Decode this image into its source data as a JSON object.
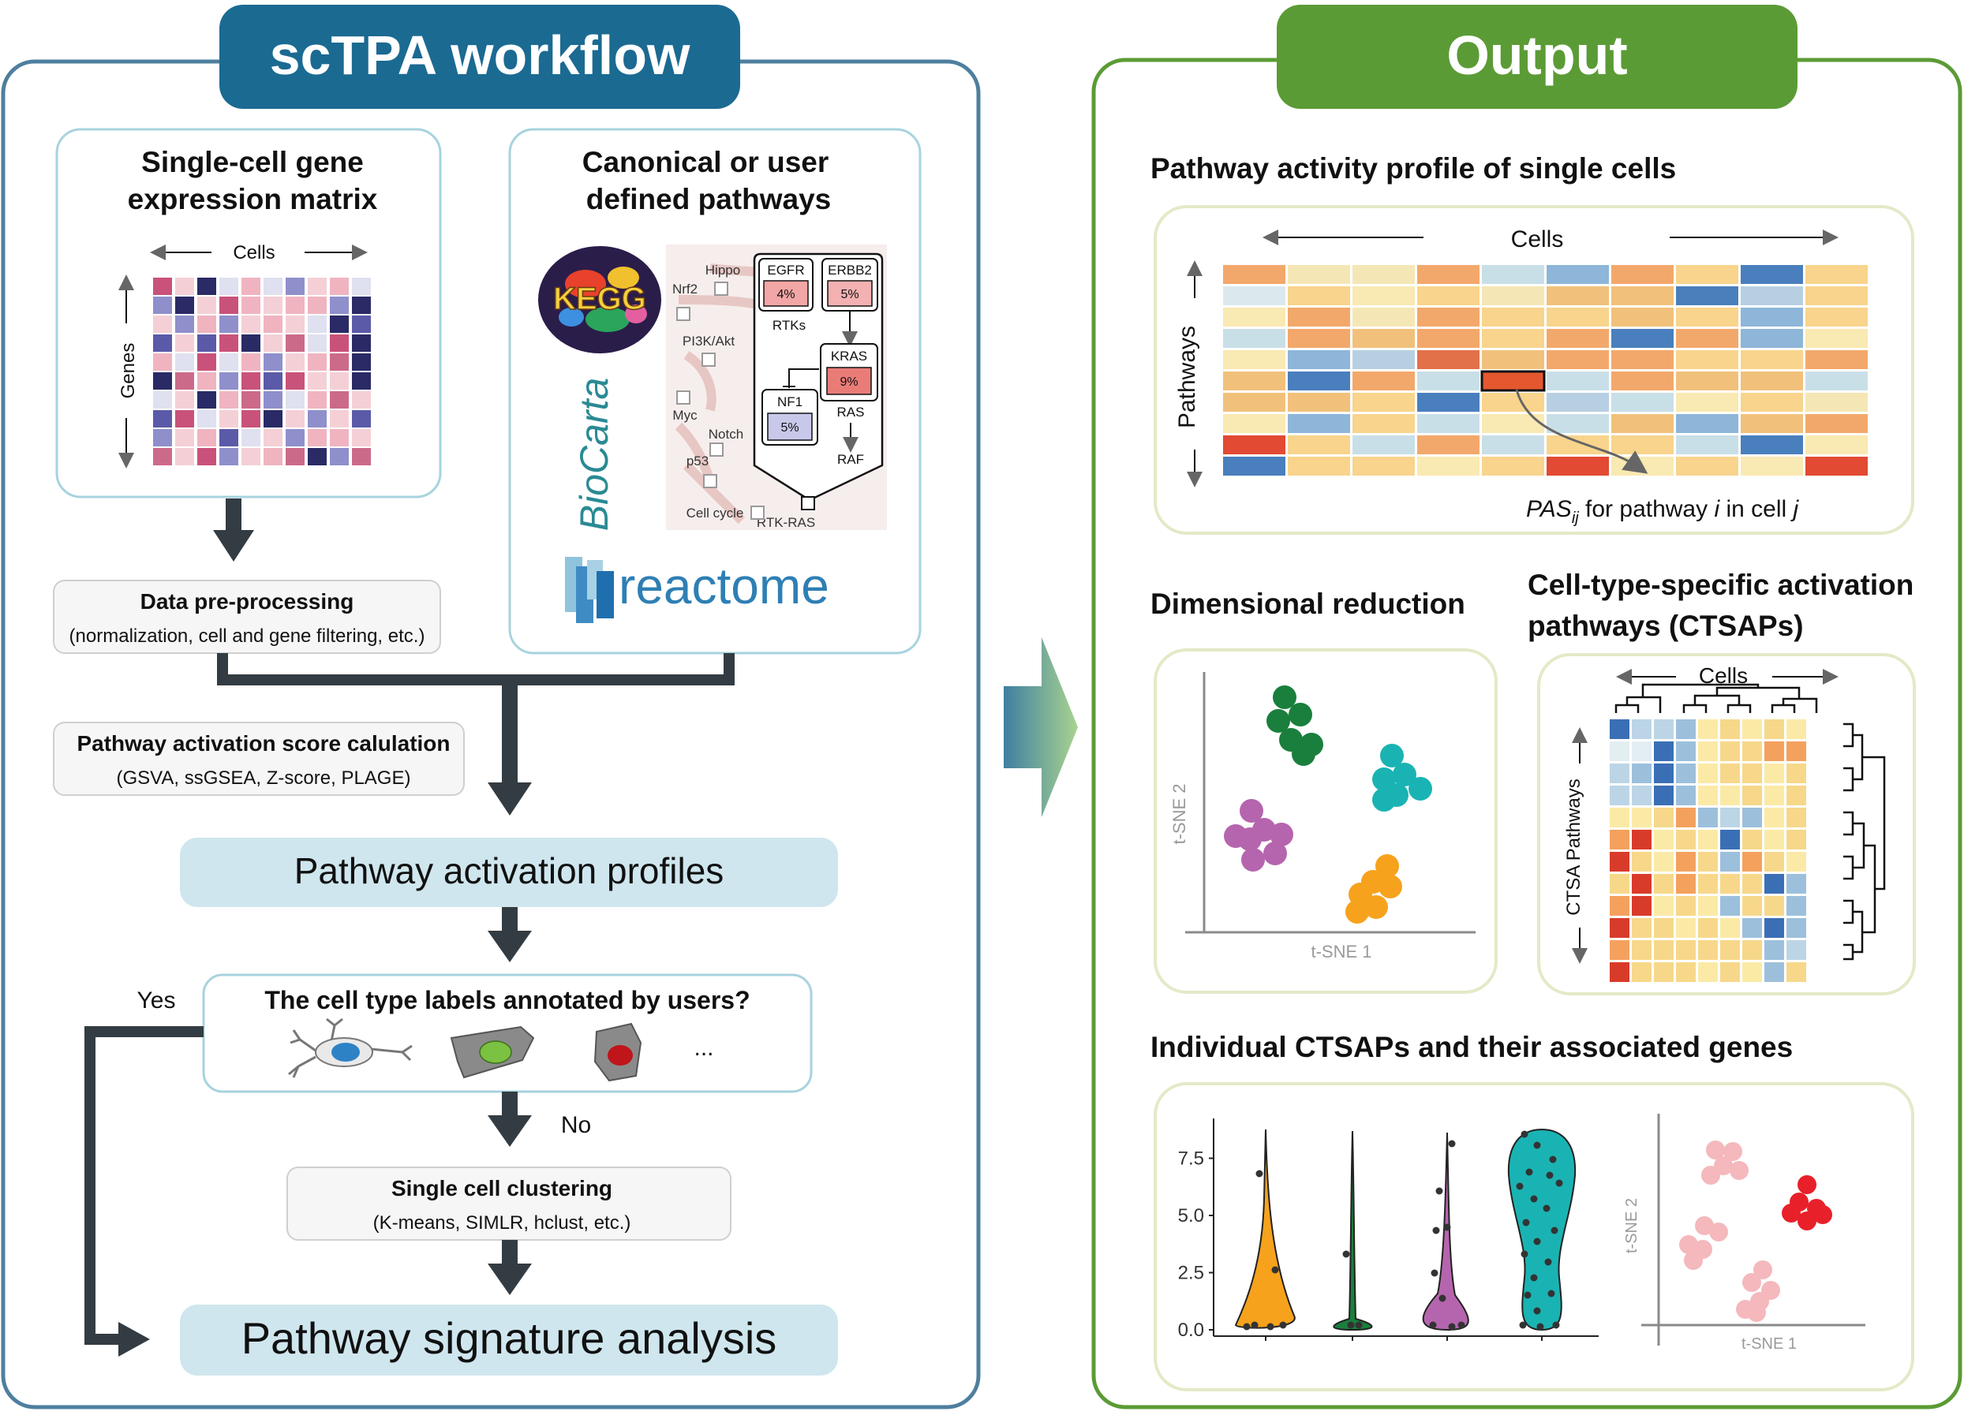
{
  "left_panel": {
    "title": "scTPA workflow",
    "expression_matrix": {
      "title_line1": "Single-cell gene",
      "title_line2": "expression matrix",
      "cells_label": "Cells",
      "genes_label": "Genes"
    },
    "pathways": {
      "title_line1": "Canonical or user",
      "title_line2": "defined pathways",
      "kegg_logo_text": "KEGG",
      "biocarta_logo_text": "BioCarta",
      "reactome_logo_text": "reactome",
      "pathway_labels": [
        "Hippo",
        "Nrf2",
        "PI3K/Akt",
        "Myc",
        "Notch",
        "p53",
        "Cell cycle",
        "RTK-RAS"
      ],
      "nodes": {
        "egfr": "EGFR",
        "egfr_pct": "4%",
        "erbb2": "ERBB2",
        "erbb2_pct": "5%",
        "rtks": "RTKs",
        "kras": "KRAS",
        "kras_pct": "9%",
        "nf1": "NF1",
        "nf1_pct": "5%",
        "ras": "RAS",
        "raf": "RAF"
      }
    },
    "preprocessing": {
      "title": "Data pre-processing",
      "subtitle": "(normalization, cell and gene filtering, etc.)"
    },
    "pas_calc": {
      "title": "Pathway activation score calulation",
      "subtitle": "(GSVA, ssGSEA, Z-score, PLAGE)"
    },
    "activation_profiles": "Pathway activation profiles",
    "question": {
      "text": "The cell type labels annotated by users?",
      "ellipsis": "...",
      "yes": "Yes",
      "no": "No"
    },
    "clustering": {
      "title": "Single cell clustering",
      "subtitle": "(K-means, SIMLR, hclust, etc.)"
    },
    "signature_analysis": "Pathway signature analysis"
  },
  "right_panel": {
    "title": "Output",
    "activity_profile": {
      "title": "Pathway activity profile of single cells",
      "cells_label": "Cells",
      "pathways_label": "Pathways",
      "pas_label_pas": "PAS",
      "pas_label_sub": "ij",
      "pas_label_rest1": " for pathway ",
      "pas_label_i": "i",
      "pas_label_rest2": " in cell ",
      "pas_label_j": "j"
    },
    "dim_reduction": {
      "title": "Dimensional reduction",
      "xlabel": "t-SNE 1",
      "ylabel": "t-SNE 2"
    },
    "ctsap": {
      "title_line1": "Cell-type-specific activation",
      "title_line2": "pathways (CTSAPs)",
      "cells_label": "Cells",
      "pathways_label": "CTSA Pathways"
    },
    "individual": {
      "title": "Individual CTSAPs and their associated genes",
      "violin_ticks": [
        "0.0",
        "2.5",
        "5.0",
        "7.5"
      ],
      "tsne_xlabel": "t-SNE 1",
      "tsne_ylabel": "t-SNE 2"
    }
  },
  "colors": {
    "left_accent": "#1f6b93",
    "right_accent": "#5b9b35",
    "pale_blue": "#cfe6ee",
    "purple": "#b565ae",
    "teal": "#1ab3b3",
    "orange": "#f6a21d",
    "green": "#1a7f3c"
  }
}
